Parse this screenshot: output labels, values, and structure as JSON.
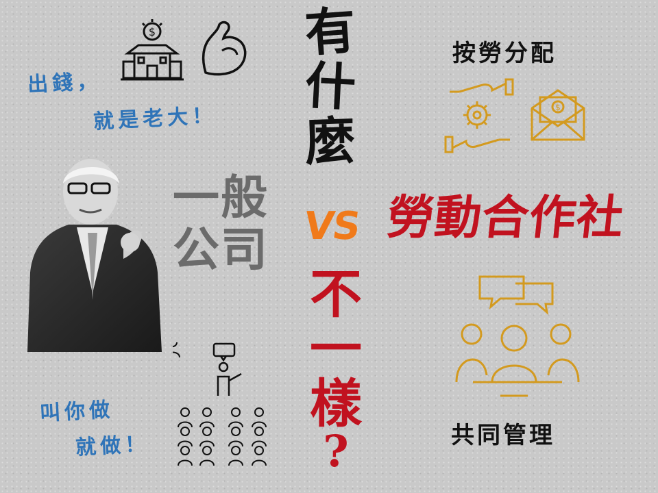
{
  "left_top_text": [
    "出錢，",
    "就是老大！"
  ],
  "left_bottom_text": [
    "叫你做",
    "就做！"
  ],
  "center_vertical_top": [
    "有",
    "什",
    "麼"
  ],
  "center_vs": "VS",
  "center_vertical_bottom": [
    "不",
    "一",
    "樣",
    "?"
  ],
  "company_label": [
    "一般",
    "公司"
  ],
  "coop_label": "勞動合作社",
  "coop_top_caption": "按勞分配",
  "coop_bottom_caption": "共同管理",
  "icons": [
    "bank-building-icon",
    "flexed-arm-icon",
    "presenter-audience-icon",
    "hand-gear-hand-icon",
    "money-envelope-icon",
    "team-meeting-icon"
  ],
  "colors": {
    "blue": "#2f74b8",
    "red": "#c1121f",
    "orange": "#f07a1a",
    "gold": "#d39a1f",
    "gray": "#6b6b6b"
  }
}
